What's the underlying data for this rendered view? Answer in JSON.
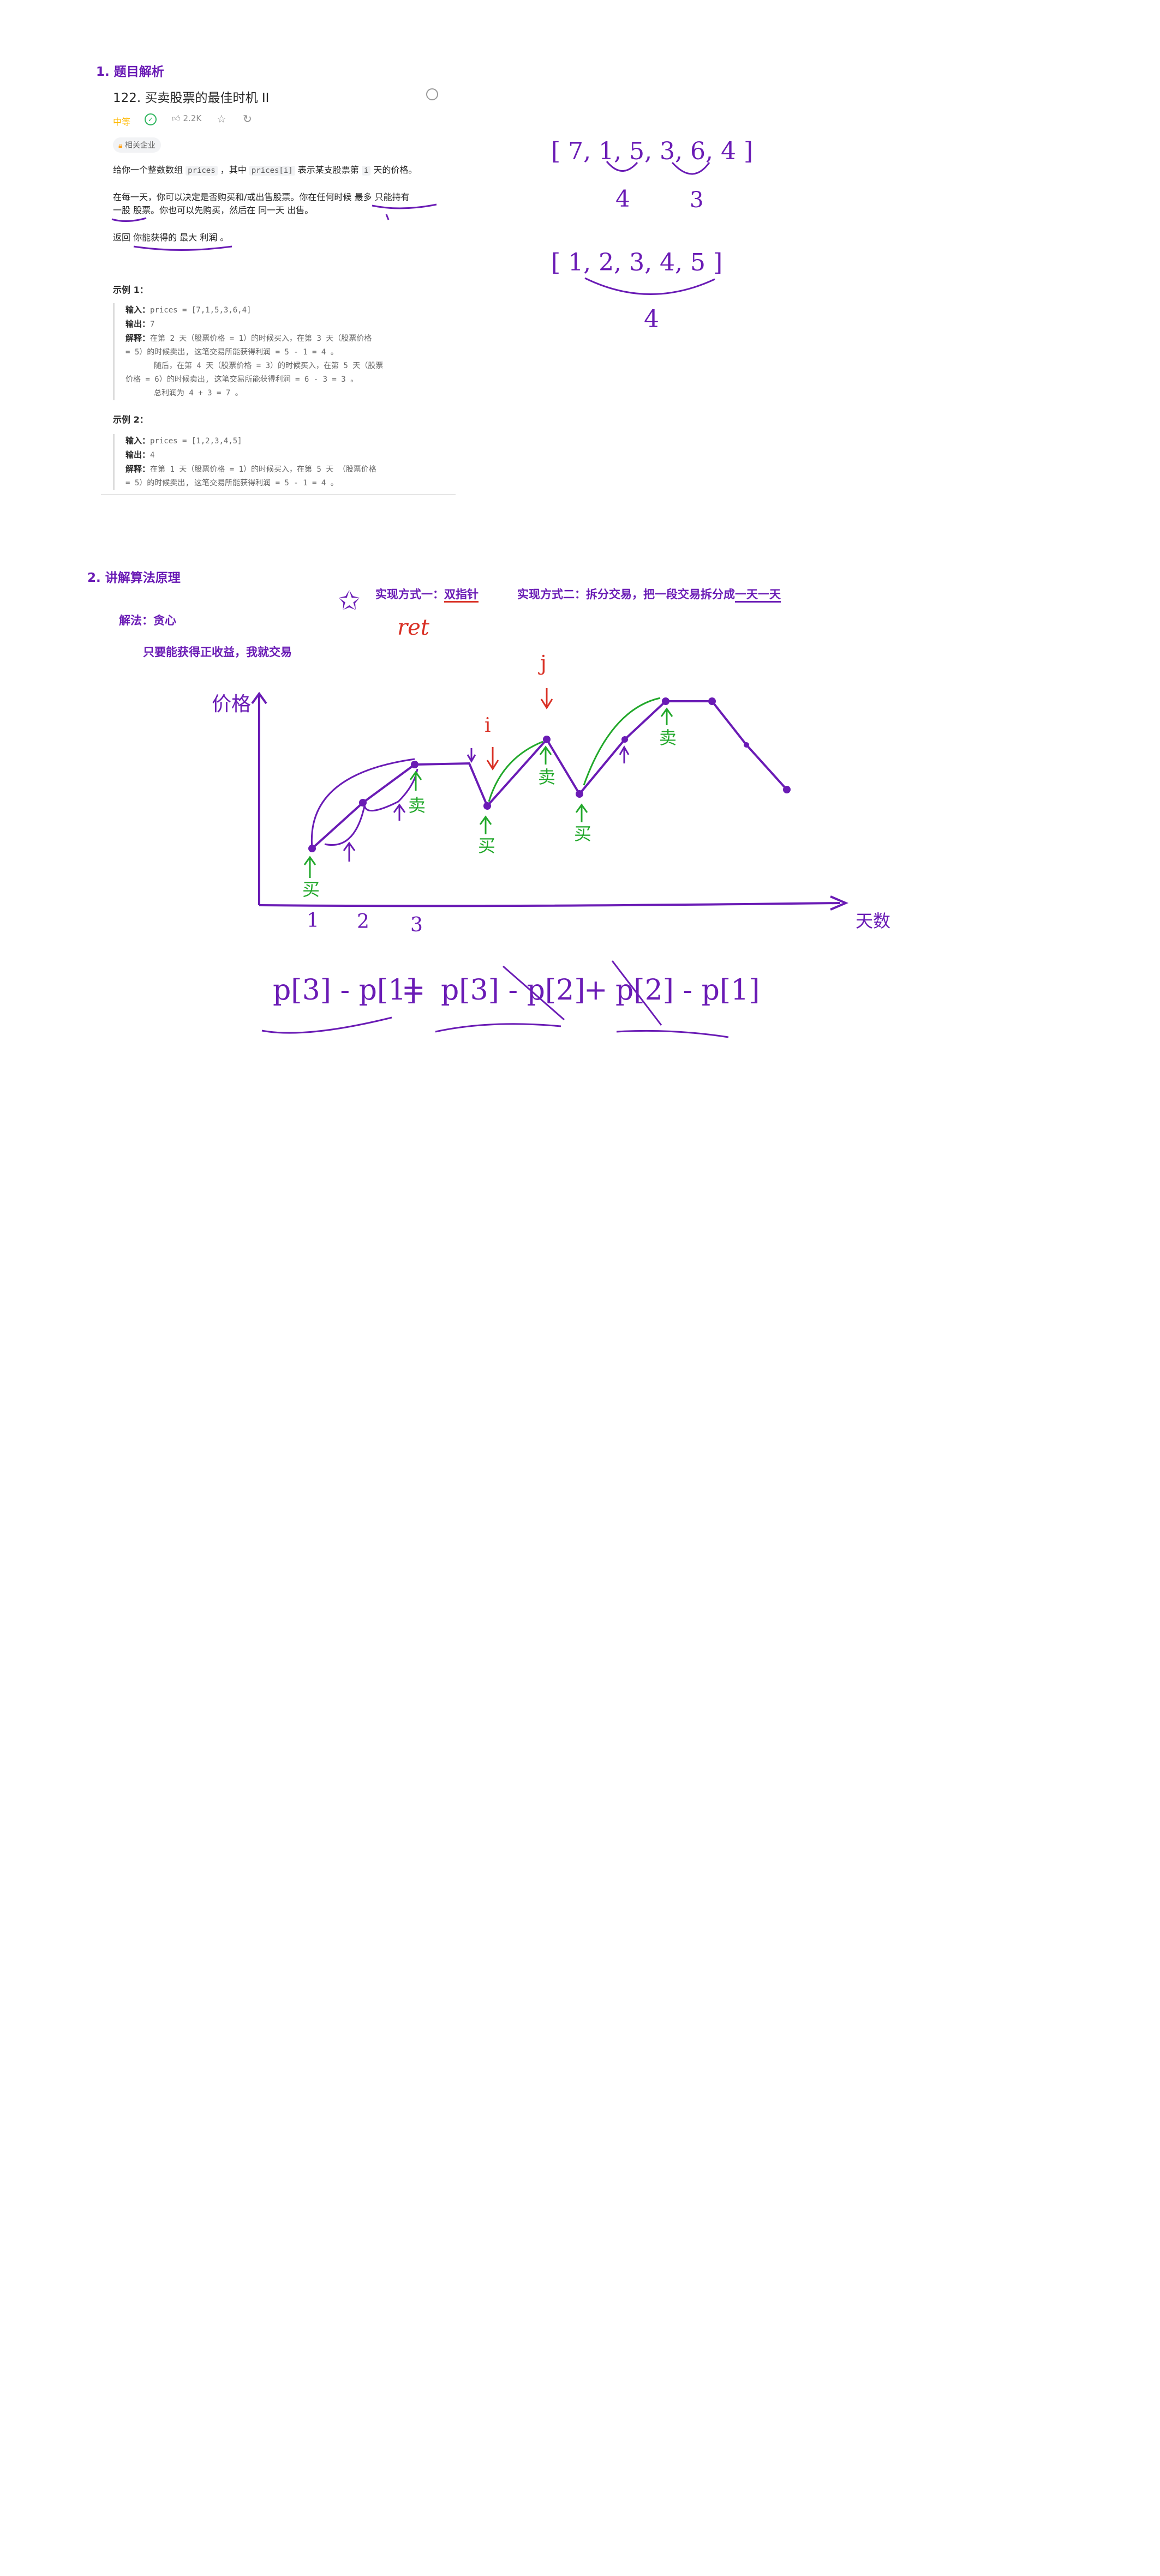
{
  "section1": {
    "title": "1. 题目解析"
  },
  "problem": {
    "title": "122. 买卖股票的最佳时机 II",
    "difficulty": "中等",
    "likes": "2.2K",
    "tag": "相关企业",
    "desc1_a": "给你一个整数数组 ",
    "desc1_code1": "prices",
    "desc1_b": " ，其中 ",
    "desc1_code2": "prices[i]",
    "desc1_c": " 表示某支股票第 ",
    "desc1_code3": "i",
    "desc1_d": " 天的价格。",
    "desc2_line1": "在每一天，你可以决定是否购买和/或出售股票。你在任何时候 最多 只能持有",
    "desc2_line2": "一股 股票。你也可以先购买，然后在 同一天 出售。",
    "desc3": "返回 你能获得的 最大 利润 。",
    "example1": {
      "title": "示例 1：",
      "input_label": "输入：",
      "input": "prices = [7,1,5,3,6,4]",
      "output_label": "输出：",
      "output": "7",
      "explain_label": "解释：",
      "lines": [
        "在第 2 天（股票价格 = 1）的时候买入，在第 3 天（股票价格",
        "= 5）的时候卖出, 这笔交易所能获得利润 = 5 - 1 = 4 。",
        "随后，在第 4 天（股票价格 = 3）的时候买入，在第 5 天（股票",
        "价格 = 6）的时候卖出, 这笔交易所能获得利润 = 6 - 3 = 3 。",
        "总利润为 4 + 3 = 7 。"
      ]
    },
    "example2": {
      "title": "示例 2：",
      "input_label": "输入：",
      "input": "prices = [1,2,3,4,5]",
      "output_label": "输出：",
      "output": "4",
      "explain_label": "解释：",
      "lines": [
        "在第 1 天（股票价格 = 1）的时候买入，在第 5 天 （股票价格",
        "= 5）的时候卖出, 这笔交易所能获得利润 = 5 - 1 = 4 。"
      ]
    }
  },
  "handwriting1": {
    "array1": "[ 7, 1, 5, 3, 6, 4 ]",
    "profit1": "4",
    "profit2": "3",
    "array2": "[ 1, 2, 3, 4, 5 ]",
    "profit3": "4"
  },
  "section2": {
    "title": "2. 讲解算法原理",
    "method_label": "解法：贪心",
    "rule": "只要能获得正收益，我就交易",
    "impl1_label": "实现方式一：",
    "impl1_value": "双指针",
    "impl2_text": "实现方式二：拆分交易，把一段交易拆分成",
    "impl2_value": "一天一天",
    "ret_label": "ret",
    "i_label": "i",
    "j_label": "j",
    "price_axis": "价格",
    "day_axis": "天数",
    "day1": "1",
    "day2": "2",
    "day3": "3",
    "buy": "买",
    "sell": "卖",
    "formula_left": "p[3] - p[1]",
    "formula_eq": "=",
    "formula_mid": "p[3] - p[2]",
    "formula_plus": "+",
    "formula_right": "p[2] - p[1]"
  }
}
